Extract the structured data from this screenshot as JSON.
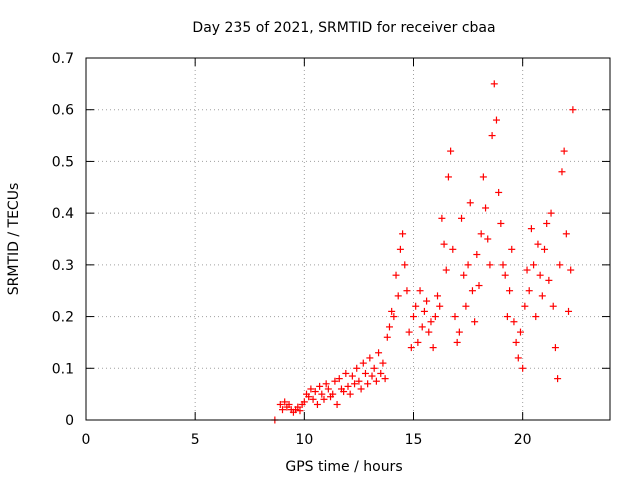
{
  "chart_data": {
    "type": "scatter",
    "title": "Day 235 of 2021, SRMTID for receiver cbaa",
    "xlabel": "GPS time / hours",
    "ylabel": "SRMTID / TECUs",
    "xlim": [
      0,
      24
    ],
    "ylim": [
      0,
      0.7
    ],
    "x_ticks": [
      0,
      5,
      10,
      15,
      20
    ],
    "y_ticks": [
      0,
      0.1,
      0.2,
      0.3,
      0.4,
      0.5,
      0.6,
      0.7
    ],
    "x_tick_labels": [
      "0",
      "5",
      "10",
      "15",
      "20"
    ],
    "y_tick_labels": [
      "0",
      "0.1",
      "0.2",
      "0.3",
      "0.4",
      "0.5",
      "0.6",
      "0.7"
    ],
    "grid": true,
    "series": [
      {
        "name": "SRMTID",
        "marker": "+",
        "color": "#ff0000",
        "points": [
          [
            8.65,
            0.0
          ],
          [
            8.9,
            0.03
          ],
          [
            9.0,
            0.02
          ],
          [
            9.1,
            0.035
          ],
          [
            9.2,
            0.025
          ],
          [
            9.3,
            0.03
          ],
          [
            9.4,
            0.02
          ],
          [
            9.5,
            0.015
          ],
          [
            9.6,
            0.02
          ],
          [
            9.7,
            0.025
          ],
          [
            9.8,
            0.018
          ],
          [
            9.9,
            0.03
          ],
          [
            10.0,
            0.035
          ],
          [
            10.1,
            0.05
          ],
          [
            10.2,
            0.045
          ],
          [
            10.3,
            0.06
          ],
          [
            10.4,
            0.04
          ],
          [
            10.5,
            0.055
          ],
          [
            10.6,
            0.03
          ],
          [
            10.7,
            0.065
          ],
          [
            10.8,
            0.05
          ],
          [
            10.9,
            0.04
          ],
          [
            11.0,
            0.07
          ],
          [
            11.1,
            0.06
          ],
          [
            11.2,
            0.045
          ],
          [
            11.3,
            0.05
          ],
          [
            11.4,
            0.075
          ],
          [
            11.5,
            0.03
          ],
          [
            11.6,
            0.08
          ],
          [
            11.7,
            0.06
          ],
          [
            11.8,
            0.055
          ],
          [
            11.9,
            0.09
          ],
          [
            12.0,
            0.065
          ],
          [
            12.1,
            0.05
          ],
          [
            12.2,
            0.085
          ],
          [
            12.3,
            0.07
          ],
          [
            12.4,
            0.1
          ],
          [
            12.5,
            0.075
          ],
          [
            12.6,
            0.06
          ],
          [
            12.7,
            0.11
          ],
          [
            12.8,
            0.09
          ],
          [
            12.9,
            0.07
          ],
          [
            13.0,
            0.12
          ],
          [
            13.1,
            0.085
          ],
          [
            13.2,
            0.1
          ],
          [
            13.3,
            0.075
          ],
          [
            13.4,
            0.13
          ],
          [
            13.5,
            0.09
          ],
          [
            13.6,
            0.11
          ],
          [
            13.7,
            0.08
          ],
          [
            13.8,
            0.16
          ],
          [
            13.9,
            0.18
          ],
          [
            14.0,
            0.21
          ],
          [
            14.1,
            0.2
          ],
          [
            14.2,
            0.28
          ],
          [
            14.3,
            0.24
          ],
          [
            14.4,
            0.33
          ],
          [
            14.5,
            0.36
          ],
          [
            14.6,
            0.3
          ],
          [
            14.7,
            0.25
          ],
          [
            14.8,
            0.17
          ],
          [
            14.9,
            0.14
          ],
          [
            15.0,
            0.2
          ],
          [
            15.1,
            0.22
          ],
          [
            15.2,
            0.15
          ],
          [
            15.3,
            0.25
          ],
          [
            15.4,
            0.18
          ],
          [
            15.5,
            0.21
          ],
          [
            15.6,
            0.23
          ],
          [
            15.7,
            0.17
          ],
          [
            15.8,
            0.19
          ],
          [
            15.9,
            0.14
          ],
          [
            16.0,
            0.2
          ],
          [
            16.1,
            0.24
          ],
          [
            16.2,
            0.22
          ],
          [
            16.3,
            0.39
          ],
          [
            16.4,
            0.34
          ],
          [
            16.5,
            0.29
          ],
          [
            16.6,
            0.47
          ],
          [
            16.7,
            0.52
          ],
          [
            16.8,
            0.33
          ],
          [
            16.9,
            0.2
          ],
          [
            17.0,
            0.15
          ],
          [
            17.1,
            0.17
          ],
          [
            17.2,
            0.39
          ],
          [
            17.3,
            0.28
          ],
          [
            17.4,
            0.22
          ],
          [
            17.5,
            0.3
          ],
          [
            17.6,
            0.42
          ],
          [
            17.7,
            0.25
          ],
          [
            17.8,
            0.19
          ],
          [
            17.9,
            0.32
          ],
          [
            18.0,
            0.26
          ],
          [
            18.1,
            0.36
          ],
          [
            18.2,
            0.47
          ],
          [
            18.3,
            0.41
          ],
          [
            18.4,
            0.35
          ],
          [
            18.5,
            0.3
          ],
          [
            18.6,
            0.55
          ],
          [
            18.7,
            0.65
          ],
          [
            18.8,
            0.58
          ],
          [
            18.9,
            0.44
          ],
          [
            19.0,
            0.38
          ],
          [
            19.1,
            0.3
          ],
          [
            19.2,
            0.28
          ],
          [
            19.3,
            0.2
          ],
          [
            19.4,
            0.25
          ],
          [
            19.5,
            0.33
          ],
          [
            19.6,
            0.19
          ],
          [
            19.7,
            0.15
          ],
          [
            19.8,
            0.12
          ],
          [
            19.9,
            0.17
          ],
          [
            20.0,
            0.1
          ],
          [
            20.1,
            0.22
          ],
          [
            20.2,
            0.29
          ],
          [
            20.3,
            0.25
          ],
          [
            20.4,
            0.37
          ],
          [
            20.5,
            0.3
          ],
          [
            20.6,
            0.2
          ],
          [
            20.7,
            0.34
          ],
          [
            20.8,
            0.28
          ],
          [
            20.9,
            0.24
          ],
          [
            21.0,
            0.33
          ],
          [
            21.1,
            0.38
          ],
          [
            21.2,
            0.27
          ],
          [
            21.3,
            0.4
          ],
          [
            21.4,
            0.22
          ],
          [
            21.5,
            0.14
          ],
          [
            21.6,
            0.08
          ],
          [
            21.7,
            0.3
          ],
          [
            21.8,
            0.48
          ],
          [
            21.9,
            0.52
          ],
          [
            22.0,
            0.36
          ],
          [
            22.1,
            0.21
          ],
          [
            22.2,
            0.29
          ],
          [
            22.3,
            0.6
          ]
        ]
      }
    ]
  }
}
